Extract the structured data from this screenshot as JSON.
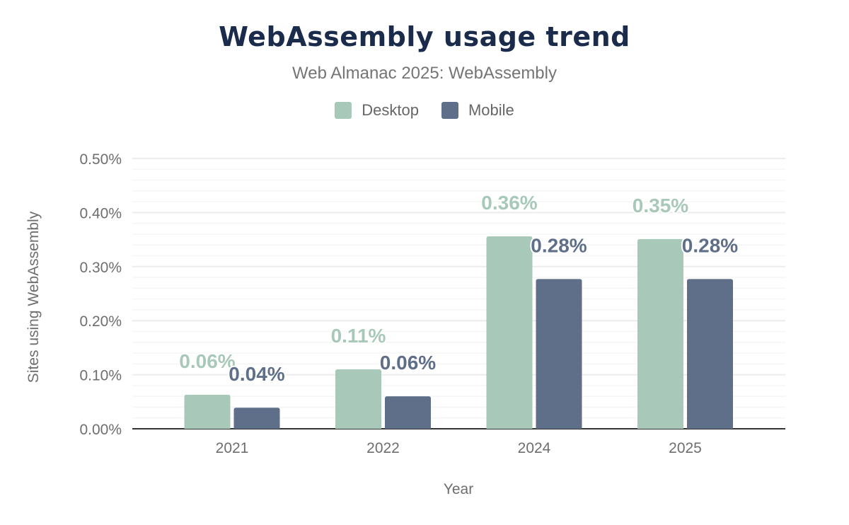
{
  "chart_data": {
    "type": "bar",
    "title": "WebAssembly usage trend",
    "subtitle": "Web Almanac 2025: WebAssembly",
    "xlabel": "Year",
    "ylabel": "Sites using WebAssembly",
    "categories": [
      "2021",
      "2022",
      "2024",
      "2025"
    ],
    "series": [
      {
        "name": "Desktop",
        "color": "#a8c9b9",
        "values": [
          0.063,
          0.11,
          0.356,
          0.351
        ],
        "labels": [
          "0.06%",
          "0.11%",
          "0.36%",
          "0.35%"
        ]
      },
      {
        "name": "Mobile",
        "color": "#5f6f8a",
        "values": [
          0.039,
          0.06,
          0.277,
          0.277
        ],
        "labels": [
          "0.04%",
          "0.06%",
          "0.28%",
          "0.28%"
        ]
      }
    ],
    "ylim": [
      0,
      0.5
    ],
    "yticks": [
      "0.00%",
      "0.10%",
      "0.20%",
      "0.30%",
      "0.40%",
      "0.50%"
    ],
    "grid": true,
    "legend_placement": "top-center"
  }
}
